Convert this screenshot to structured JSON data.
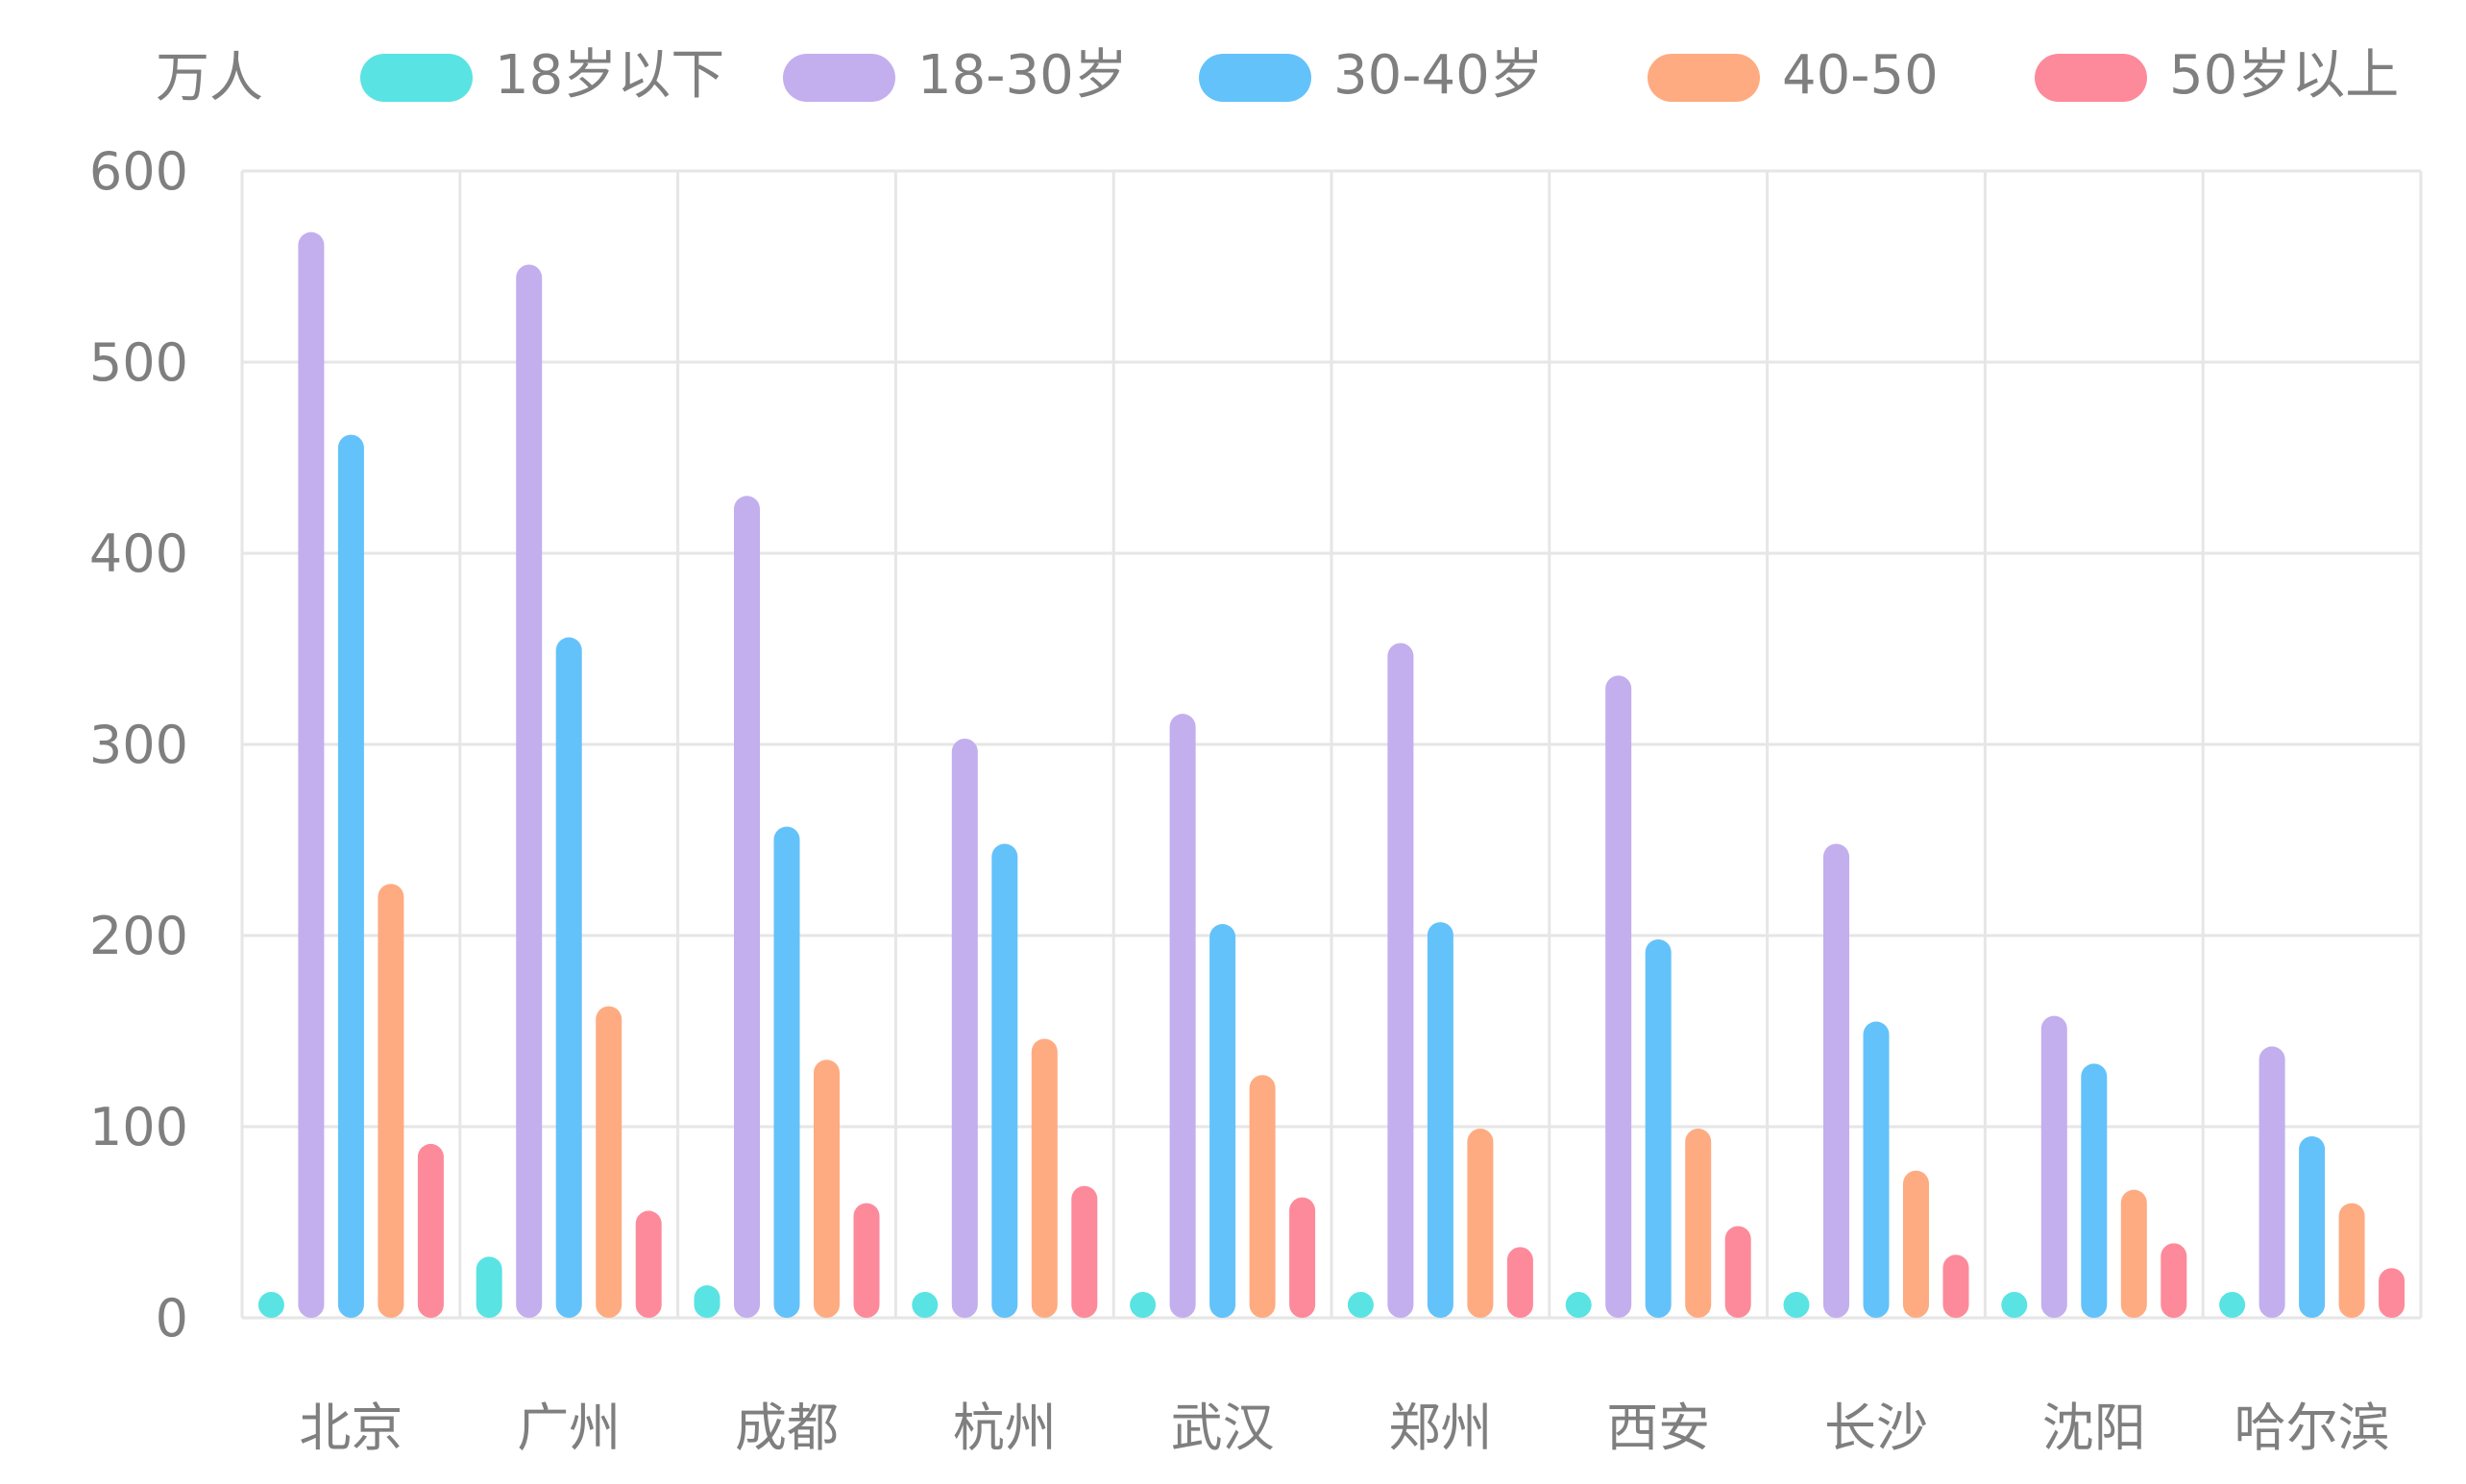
{
  "chart_data": {
    "type": "bar",
    "unit_label": "万人",
    "categories": [
      "北京",
      "广州",
      "成都",
      "杭州",
      "武汉",
      "郑州",
      "西安",
      "长沙",
      "沈阳",
      "哈尔滨"
    ],
    "series": [
      {
        "name": "18岁以下",
        "color": "#5ae3e3",
        "values": [
          10,
          32,
          17,
          10,
          10,
          10,
          10,
          10,
          10,
          10
        ]
      },
      {
        "name": "18-30岁",
        "color": "#c3aeee",
        "values": [
          568,
          551,
          430,
          303,
          316,
          353,
          336,
          248,
          158,
          142
        ]
      },
      {
        "name": "30-40岁",
        "color": "#63c2fa",
        "values": [
          462,
          356,
          257,
          248,
          206,
          207,
          198,
          155,
          133,
          95
        ]
      },
      {
        "name": "40-50",
        "color": "#feab81",
        "values": [
          227,
          163,
          135,
          146,
          127,
          99,
          99,
          77,
          67,
          60
        ]
      },
      {
        "name": "50岁以上",
        "color": "#fd8a9a",
        "values": [
          91,
          56,
          60,
          69,
          63,
          37,
          48,
          33,
          39,
          26
        ]
      }
    ],
    "ylim": [
      0,
      600
    ],
    "yticks": [
      0,
      100,
      200,
      300,
      400,
      500,
      600
    ],
    "ytick_labels": [
      "0",
      "100",
      "200",
      "300",
      "400",
      "500",
      "600"
    ],
    "grid": true,
    "legend_position": "top"
  }
}
